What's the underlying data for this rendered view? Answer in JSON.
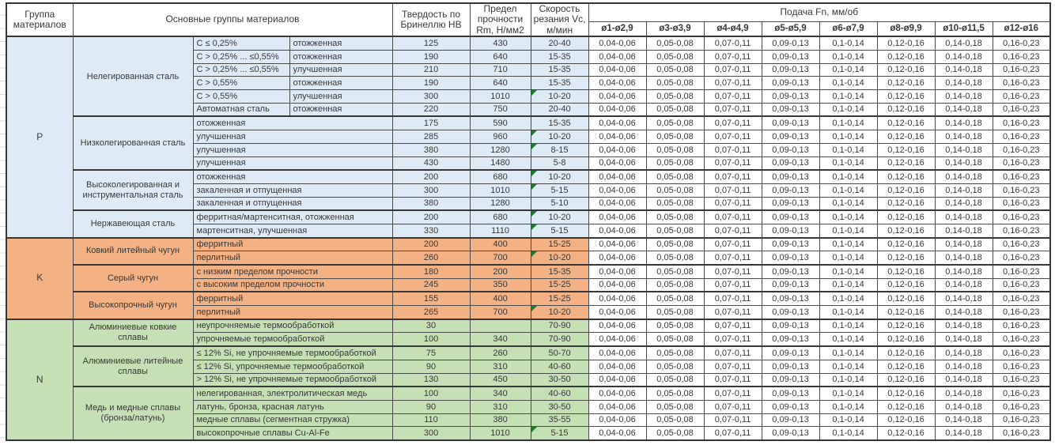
{
  "header": {
    "group": "Группа материалов",
    "main": "Основные группы материалов",
    "hardness": "Твердость по Бринеллю HB",
    "strength": "Предел прочности Rm, Н/мм2",
    "speed": "Скорость резания Vc, м/мин",
    "feed": "Подача Fn, мм/об",
    "feed_cols": [
      "ø1-ø2,9",
      "ø3-ø3,9",
      "ø4-ø4,9",
      "ø5-ø5,9",
      "ø6-ø7,9",
      "ø8-ø9,9",
      "ø10-ø11,5",
      "ø12-ø16"
    ]
  },
  "feed_values": [
    "0,04-0,06",
    "0,05-0,08",
    "0,07-0,11",
    "0,09-0,13",
    "0,1-0,14",
    "0,12-0,16",
    "0,14-0,18",
    "0,16-0,23"
  ],
  "colors": {
    "group_p_fill": "#DEEBF7",
    "group_k_fill": "#F4B183",
    "group_n_fill": "#C5E0B4",
    "flag_triangle": "#1f7a2e",
    "border": "#4a4a4a"
  },
  "groups": [
    {
      "code": "P",
      "key": "p",
      "subgroups": [
        {
          "name": "Нелегированная сталь",
          "rows": [
            {
              "cols": [
                "C ≤ 0,25%",
                "отожженная"
              ],
              "hb": "125",
              "rm": "430",
              "vc": "20-40",
              "flag": false
            },
            {
              "cols": [
                "C > 0,25% ... ≤0,55%",
                "отожженная"
              ],
              "hb": "190",
              "rm": "640",
              "vc": "15-35",
              "flag": false
            },
            {
              "cols": [
                "C > 0,25% ... ≤0,55%",
                "улучшенная"
              ],
              "hb": "210",
              "rm": "710",
              "vc": "15-35",
              "flag": false
            },
            {
              "cols": [
                "C > 0,55%",
                "отожженная"
              ],
              "hb": "190",
              "rm": "640",
              "vc": "15-35",
              "flag": false
            },
            {
              "cols": [
                "C > 0,55%",
                "улучшенная"
              ],
              "hb": "300",
              "rm": "1010",
              "vc": "10-20",
              "flag": true
            },
            {
              "cols": [
                "Автоматная сталь",
                "отожженная"
              ],
              "hb": "220",
              "rm": "750",
              "vc": "20-40",
              "flag": false
            }
          ]
        },
        {
          "name": "Низколегированная сталь",
          "rows": [
            {
              "cols": [
                "отожженная"
              ],
              "hb": "175",
              "rm": "590",
              "vc": "15-35",
              "flag": false
            },
            {
              "cols": [
                "улучшенная"
              ],
              "hb": "285",
              "rm": "960",
              "vc": "10-20",
              "flag": true
            },
            {
              "cols": [
                "улучшенная"
              ],
              "hb": "380",
              "rm": "1280",
              "vc": "8-15",
              "flag": true
            },
            {
              "cols": [
                "улучшенная"
              ],
              "hb": "430",
              "rm": "1480",
              "vc": "5-8",
              "flag": false
            }
          ]
        },
        {
          "name": "Высоколегированная и инструментальная сталь",
          "rows": [
            {
              "cols": [
                "отожженная"
              ],
              "hb": "200",
              "rm": "680",
              "vc": "10-20",
              "flag": true
            },
            {
              "cols": [
                "закаленная и отпущенная"
              ],
              "hb": "300",
              "rm": "1010",
              "vc": "5-15",
              "flag": true
            },
            {
              "cols": [
                "закаленная и отпущенная"
              ],
              "hb": "380",
              "rm": "1280",
              "vc": "5-10",
              "flag": false
            }
          ]
        },
        {
          "name": "Нержавеющая сталь",
          "rows": [
            {
              "cols": [
                "ферритная/мартенситная, отожженная"
              ],
              "hb": "200",
              "rm": "680",
              "vc": "10-20",
              "flag": true
            },
            {
              "cols": [
                "мартенситная, улучшенная"
              ],
              "hb": "330",
              "rm": "1110",
              "vc": "5-15",
              "flag": true
            }
          ]
        }
      ]
    },
    {
      "code": "K",
      "key": "k",
      "subgroups": [
        {
          "name": "Ковкий литейный чугун",
          "rows": [
            {
              "cols": [
                "ферритный"
              ],
              "hb": "200",
              "rm": "400",
              "vc": "15-25",
              "flag": false
            },
            {
              "cols": [
                "перлитный"
              ],
              "hb": "260",
              "rm": "700",
              "vc": "10-20",
              "flag": true
            }
          ]
        },
        {
          "name": "Серый чугун",
          "rows": [
            {
              "cols": [
                "с низким пределом прочности"
              ],
              "hb": "180",
              "rm": "200",
              "vc": "15-35",
              "flag": false
            },
            {
              "cols": [
                "с высоким пределом прочности"
              ],
              "hb": "245",
              "rm": "350",
              "vc": "15-25",
              "flag": false
            }
          ]
        },
        {
          "name": "Высокопрочный чугун",
          "rows": [
            {
              "cols": [
                "ферритный"
              ],
              "hb": "155",
              "rm": "400",
              "vc": "15-25",
              "flag": false
            },
            {
              "cols": [
                "перлитный"
              ],
              "hb": "265",
              "rm": "700",
              "vc": "10-20",
              "flag": true
            }
          ]
        }
      ]
    },
    {
      "code": "N",
      "key": "n",
      "subgroups": [
        {
          "name": "Алюминиевые ковкие сплавы",
          "rows": [
            {
              "cols": [
                "неупрочняемые термообработкой"
              ],
              "hb": "30",
              "rm": "",
              "vc": "70-90",
              "flag": false
            },
            {
              "cols": [
                "упрочняемые термообработкой"
              ],
              "hb": "100",
              "rm": "340",
              "vc": "70-90",
              "flag": false
            }
          ]
        },
        {
          "name": "Алюминиевые литейные сплавы",
          "rows": [
            {
              "cols": [
                "≤ 12% Si, не упрочняемые термообработкой"
              ],
              "hb": "75",
              "rm": "260",
              "vc": "50-70",
              "flag": false
            },
            {
              "cols": [
                "≤ 12% Si, упрочняемые термообработкой"
              ],
              "hb": "90",
              "rm": "310",
              "vc": "40-60",
              "flag": false
            },
            {
              "cols": [
                "> 12% Si, не упрочняемые термообработкой"
              ],
              "hb": "130",
              "rm": "450",
              "vc": "30-50",
              "flag": false
            }
          ]
        },
        {
          "name": "Медь и медные сплавы (бронза/латунь)",
          "rows": [
            {
              "cols": [
                "нелегированная, электролитическая медь"
              ],
              "hb": "100",
              "rm": "340",
              "vc": "40-60",
              "flag": false
            },
            {
              "cols": [
                "латунь, бронза, красная латунь"
              ],
              "hb": "90",
              "rm": "310",
              "vc": "30-50",
              "flag": false
            },
            {
              "cols": [
                "медные сплавы (сегментная стружка)"
              ],
              "hb": "110",
              "rm": "380",
              "vc": "35-55",
              "flag": false
            },
            {
              "cols": [
                "высокопрочные сплавы Cu-Al-Fe"
              ],
              "hb": "300",
              "rm": "1010",
              "vc": "5-15",
              "flag": true
            }
          ]
        }
      ]
    }
  ]
}
